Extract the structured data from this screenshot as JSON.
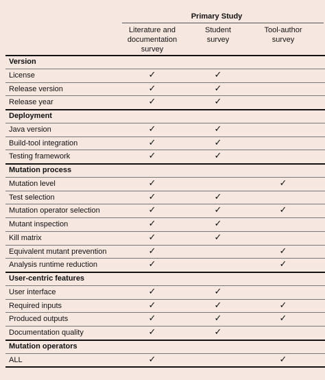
{
  "table": {
    "group_header": "Primary Study",
    "columns": [
      [
        "Literature and",
        "documentation",
        "survey"
      ],
      [
        "Student",
        "survey"
      ],
      [
        "Tool-author",
        "survey"
      ]
    ],
    "sections": [
      {
        "title": "Version",
        "rows": [
          {
            "label": "License",
            "cells": [
              "✓",
              "✓",
              null
            ]
          },
          {
            "label": "Release version",
            "cells": [
              "✓",
              "✓",
              null
            ]
          },
          {
            "label": "Release year",
            "cells": [
              "✓",
              "✓",
              null
            ]
          }
        ]
      },
      {
        "title": "Deployment",
        "rows": [
          {
            "label": "Java version",
            "cells": [
              "✓",
              "✓",
              null
            ]
          },
          {
            "label": "Build-tool integration",
            "cells": [
              "✓",
              "✓",
              null
            ]
          },
          {
            "label": "Testing framework",
            "cells": [
              "✓",
              "✓",
              null
            ]
          }
        ]
      },
      {
        "title": "Mutation process",
        "rows": [
          {
            "label": "Mutation level",
            "cells": [
              "✓",
              null,
              "✓"
            ]
          },
          {
            "label": "Test selection",
            "cells": [
              "✓",
              "✓",
              null
            ]
          },
          {
            "label": "Mutation operator selection",
            "cells": [
              "✓",
              "✓",
              "✓"
            ]
          },
          {
            "label": "Mutant inspection",
            "cells": [
              "✓",
              "✓",
              null
            ]
          },
          {
            "label": "Kill matrix",
            "cells": [
              "✓",
              "✓",
              null
            ]
          },
          {
            "label": "Equivalent mutant prevention",
            "cells": [
              "✓",
              null,
              "✓"
            ]
          },
          {
            "label": "Analysis runtime reduction",
            "cells": [
              "✓",
              null,
              "✓"
            ]
          }
        ]
      },
      {
        "title": "User-centric features",
        "rows": [
          {
            "label": "User interface",
            "cells": [
              "✓",
              "✓",
              null
            ]
          },
          {
            "label": "Required inputs",
            "cells": [
              "✓",
              "✓",
              "✓"
            ]
          },
          {
            "label": "Produced outputs",
            "cells": [
              "✓",
              "✓",
              "✓"
            ]
          },
          {
            "label": "Documentation quality",
            "cells": [
              "✓",
              "✓",
              null
            ]
          }
        ]
      },
      {
        "title": "Mutation operators",
        "rows": [
          {
            "label": "ALL",
            "cells": [
              "✓",
              null,
              "✓"
            ]
          }
        ]
      }
    ]
  }
}
